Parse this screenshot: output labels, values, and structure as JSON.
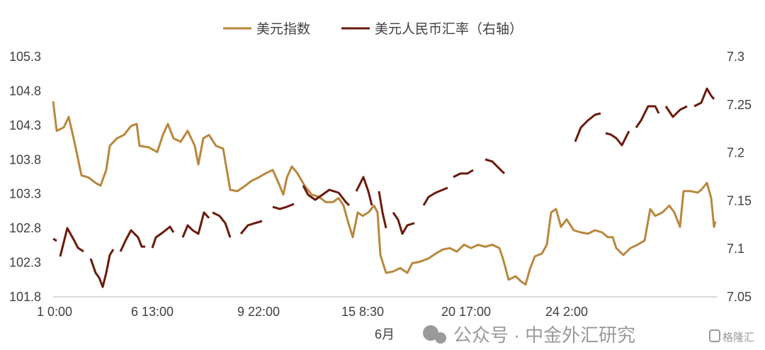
{
  "chart_data": {
    "type": "line",
    "xlabel": "6月",
    "x_ticks": [
      {
        "x": 2,
        "label": "1 0:00"
      },
      {
        "x": 140,
        "label": "6 13:00"
      },
      {
        "x": 290,
        "label": "9 22:00"
      },
      {
        "x": 437,
        "label": "15 8:30"
      },
      {
        "x": 583,
        "label": "20 17:00"
      },
      {
        "x": 725,
        "label": "24 2:00"
      }
    ],
    "xlim": [
      0,
      935
    ],
    "y_left": {
      "lim": [
        101.8,
        105.3
      ],
      "ticks": [
        "101.8",
        "102.3",
        "102.8",
        "103.3",
        "103.8",
        "104.3",
        "104.8",
        "105.3"
      ]
    },
    "y_right": {
      "lim": [
        7.05,
        7.3
      ],
      "ticks": [
        "7.05",
        "7.1",
        "7.15",
        "7.2",
        "7.25",
        "7.3"
      ]
    },
    "grid": false,
    "legend_position": "top",
    "series": [
      {
        "name": "美元指数",
        "axis": "left",
        "color": "#b9873d",
        "segments": [
          [
            [
              0,
              104.65
            ],
            [
              5,
              104.22
            ],
            [
              15,
              104.27
            ],
            [
              22,
              104.42
            ],
            [
              30,
              104.06
            ],
            [
              40,
              103.57
            ],
            [
              50,
              103.54
            ],
            [
              60,
              103.46
            ],
            [
              67,
              103.42
            ],
            [
              75,
              103.65
            ],
            [
              80,
              104.0
            ],
            [
              90,
              104.11
            ],
            [
              100,
              104.16
            ],
            [
              110,
              104.29
            ],
            [
              118,
              104.32
            ],
            [
              122,
              104.0
            ],
            [
              135,
              103.98
            ],
            [
              147,
              103.91
            ],
            [
              155,
              104.16
            ],
            [
              162,
              104.32
            ],
            [
              170,
              104.11
            ],
            [
              180,
              104.06
            ],
            [
              190,
              104.22
            ],
            [
              200,
              104.0
            ],
            [
              205,
              103.73
            ],
            [
              212,
              104.11
            ],
            [
              220,
              104.16
            ],
            [
              230,
              104.0
            ],
            [
              240,
              103.96
            ],
            [
              250,
              103.36
            ],
            [
              260,
              103.34
            ],
            [
              270,
              103.41
            ],
            [
              280,
              103.49
            ],
            [
              290,
              103.54
            ],
            [
              300,
              103.6
            ],
            [
              310,
              103.65
            ],
            [
              317,
              103.49
            ],
            [
              325,
              103.29
            ],
            [
              330,
              103.54
            ],
            [
              337,
              103.7
            ],
            [
              345,
              103.6
            ],
            [
              355,
              103.42
            ],
            [
              365,
              103.29
            ],
            [
              375,
              103.26
            ],
            [
              385,
              103.18
            ],
            [
              395,
              103.18
            ],
            [
              403,
              103.24
            ],
            [
              410,
              103.13
            ],
            [
              417,
              102.87
            ],
            [
              423,
              102.67
            ],
            [
              430,
              103.03
            ],
            [
              437,
              102.98
            ],
            [
              445,
              103.03
            ],
            [
              453,
              103.13
            ],
            [
              458,
              103.03
            ],
            [
              462,
              102.41
            ],
            [
              470,
              102.15
            ],
            [
              480,
              102.17
            ],
            [
              490,
              102.22
            ],
            [
              500,
              102.15
            ],
            [
              507,
              102.29
            ],
            [
              517,
              102.31
            ],
            [
              530,
              102.36
            ],
            [
              540,
              102.43
            ],
            [
              550,
              102.49
            ],
            [
              560,
              102.51
            ],
            [
              570,
              102.46
            ],
            [
              580,
              102.56
            ],
            [
              590,
              102.51
            ],
            [
              600,
              102.56
            ],
            [
              610,
              102.53
            ],
            [
              620,
              102.56
            ],
            [
              630,
              102.51
            ],
            [
              635,
              102.36
            ],
            [
              643,
              102.05
            ],
            [
              653,
              102.1
            ],
            [
              660,
              102.03
            ],
            [
              667,
              101.98
            ],
            [
              673,
              102.2
            ],
            [
              680,
              102.39
            ],
            [
              690,
              102.43
            ],
            [
              697,
              102.56
            ],
            [
              703,
              103.03
            ],
            [
              710,
              103.08
            ],
            [
              717,
              102.82
            ],
            [
              725,
              102.93
            ],
            [
              735,
              102.77
            ],
            [
              745,
              102.74
            ],
            [
              755,
              102.72
            ],
            [
              765,
              102.77
            ],
            [
              775,
              102.74
            ],
            [
              783,
              102.67
            ],
            [
              790,
              102.67
            ],
            [
              795,
              102.51
            ],
            [
              805,
              102.41
            ],
            [
              815,
              102.51
            ],
            [
              825,
              102.56
            ],
            [
              835,
              102.62
            ],
            [
              843,
              103.08
            ],
            [
              850,
              102.98
            ],
            [
              860,
              103.03
            ],
            [
              870,
              103.13
            ],
            [
              877,
              103.03
            ],
            [
              885,
              102.82
            ],
            [
              890,
              103.34
            ],
            [
              900,
              103.34
            ],
            [
              910,
              103.32
            ],
            [
              915,
              103.36
            ],
            [
              923,
              103.46
            ],
            [
              929,
              103.24
            ],
            [
              933,
              102.82
            ],
            [
              935,
              102.9
            ]
          ]
        ]
      },
      {
        "name": "美元人民币汇率（右轴）",
        "axis": "right",
        "color": "#6a1a0c",
        "segments": [
          [
            [
              0,
              7.1105
            ],
            [
              5,
              7.1083
            ]
          ],
          [
            [
              10,
              7.092
            ],
            [
              20,
              7.1215
            ],
            [
              30,
              7.1083
            ],
            [
              35,
              7.101
            ],
            [
              43,
              7.0972
            ]
          ],
          [
            [
              53,
              7.0898
            ],
            [
              60,
              7.075
            ],
            [
              65,
              7.0699
            ],
            [
              70,
              7.0603
            ],
            [
              75,
              7.075
            ],
            [
              80,
              7.0935
            ],
            [
              85,
              7.0994
            ]
          ],
          [
            [
              95,
              7.0972
            ],
            [
              103,
              7.1097
            ],
            [
              110,
              7.1193
            ],
            [
              120,
              7.1119
            ],
            [
              125,
              7.1023
            ],
            [
              130,
              7.1023
            ]
          ],
          [
            [
              140,
              7.1009
            ],
            [
              145,
              7.1119
            ],
            [
              155,
              7.1171
            ],
            [
              165,
              7.123
            ],
            [
              170,
              7.1171
            ]
          ],
          [
            [
              183,
              7.1119
            ],
            [
              190,
              7.1245
            ],
            [
              197,
              7.1193
            ],
            [
              205,
              7.1156
            ],
            [
              213,
              7.1378
            ],
            [
              220,
              7.132
            ]
          ],
          [
            [
              225,
              7.1378
            ],
            [
              235,
              7.1342
            ],
            [
              243,
              7.1268
            ],
            [
              250,
              7.1119
            ]
          ],
          [
            [
              265,
              7.1156
            ],
            [
              275,
              7.1245
            ],
            [
              285,
              7.1268
            ],
            [
              295,
              7.1289
            ]
          ],
          [
            [
              310,
              7.1437
            ],
            [
              320,
              7.1415
            ],
            [
              330,
              7.1437
            ],
            [
              340,
              7.1467
            ]
          ],
          [
            [
              353,
              7.1658
            ],
            [
              360,
              7.1562
            ],
            [
              370,
              7.151
            ],
            [
              380,
              7.1562
            ],
            [
              390,
              7.1614
            ],
            [
              403,
              7.1584
            ],
            [
              413,
              7.1489
            ],
            [
              418,
              7.1452
            ]
          ],
          [
            [
              428,
              7.1599
            ],
            [
              438,
              7.1747
            ],
            [
              445,
              7.1599
            ],
            [
              450,
              7.1452
            ]
          ],
          [
            [
              460,
              7.1599
            ],
            [
              465,
              7.1378
            ],
            [
              470,
              7.1215
            ]
          ],
          [
            [
              480,
              7.1378
            ],
            [
              487,
              7.1304
            ],
            [
              493,
              7.1156
            ],
            [
              500,
              7.1245
            ],
            [
              510,
              7.1268
            ]
          ],
          [
            [
              523,
              7.1452
            ],
            [
              530,
              7.154
            ],
            [
              540,
              7.1584
            ],
            [
              550,
              7.1614
            ],
            [
              557,
              7.1636
            ]
          ],
          [
            [
              565,
              7.1747
            ],
            [
              575,
              7.1784
            ],
            [
              585,
              7.1784
            ],
            [
              593,
              7.182
            ]
          ],
          [
            [
              610,
              7.1931
            ],
            [
              620,
              7.1909
            ],
            [
              630,
              7.1835
            ],
            [
              637,
              7.1784
            ]
          ],
          [
            [
              737,
              7.2115
            ],
            [
              745,
              7.2262
            ],
            [
              755,
              7.2336
            ],
            [
              765,
              7.2395
            ],
            [
              773,
              7.241
            ]
          ],
          [
            [
              780,
              7.2204
            ],
            [
              787,
              7.219
            ],
            [
              795,
              7.2152
            ],
            [
              803,
              7.2078
            ],
            [
              813,
              7.2226
            ]
          ],
          [
            [
              823,
              7.2262
            ],
            [
              830,
              7.2336
            ],
            [
              840,
              7.2484
            ],
            [
              850,
              7.2484
            ],
            [
              855,
              7.241
            ]
          ],
          [
            [
              865,
              7.2484
            ],
            [
              875,
              7.2373
            ],
            [
              885,
              7.2447
            ],
            [
              895,
              7.2484
            ]
          ],
          [
            [
              905,
              7.2484
            ],
            [
              915,
              7.2521
            ],
            [
              923,
              7.2668
            ],
            [
              929,
              7.2594
            ],
            [
              933,
              7.2558
            ]
          ]
        ]
      }
    ]
  },
  "watermark": {
    "wechat_text": "公众号 · 中金外汇研究",
    "logo_text": "格隆汇"
  }
}
